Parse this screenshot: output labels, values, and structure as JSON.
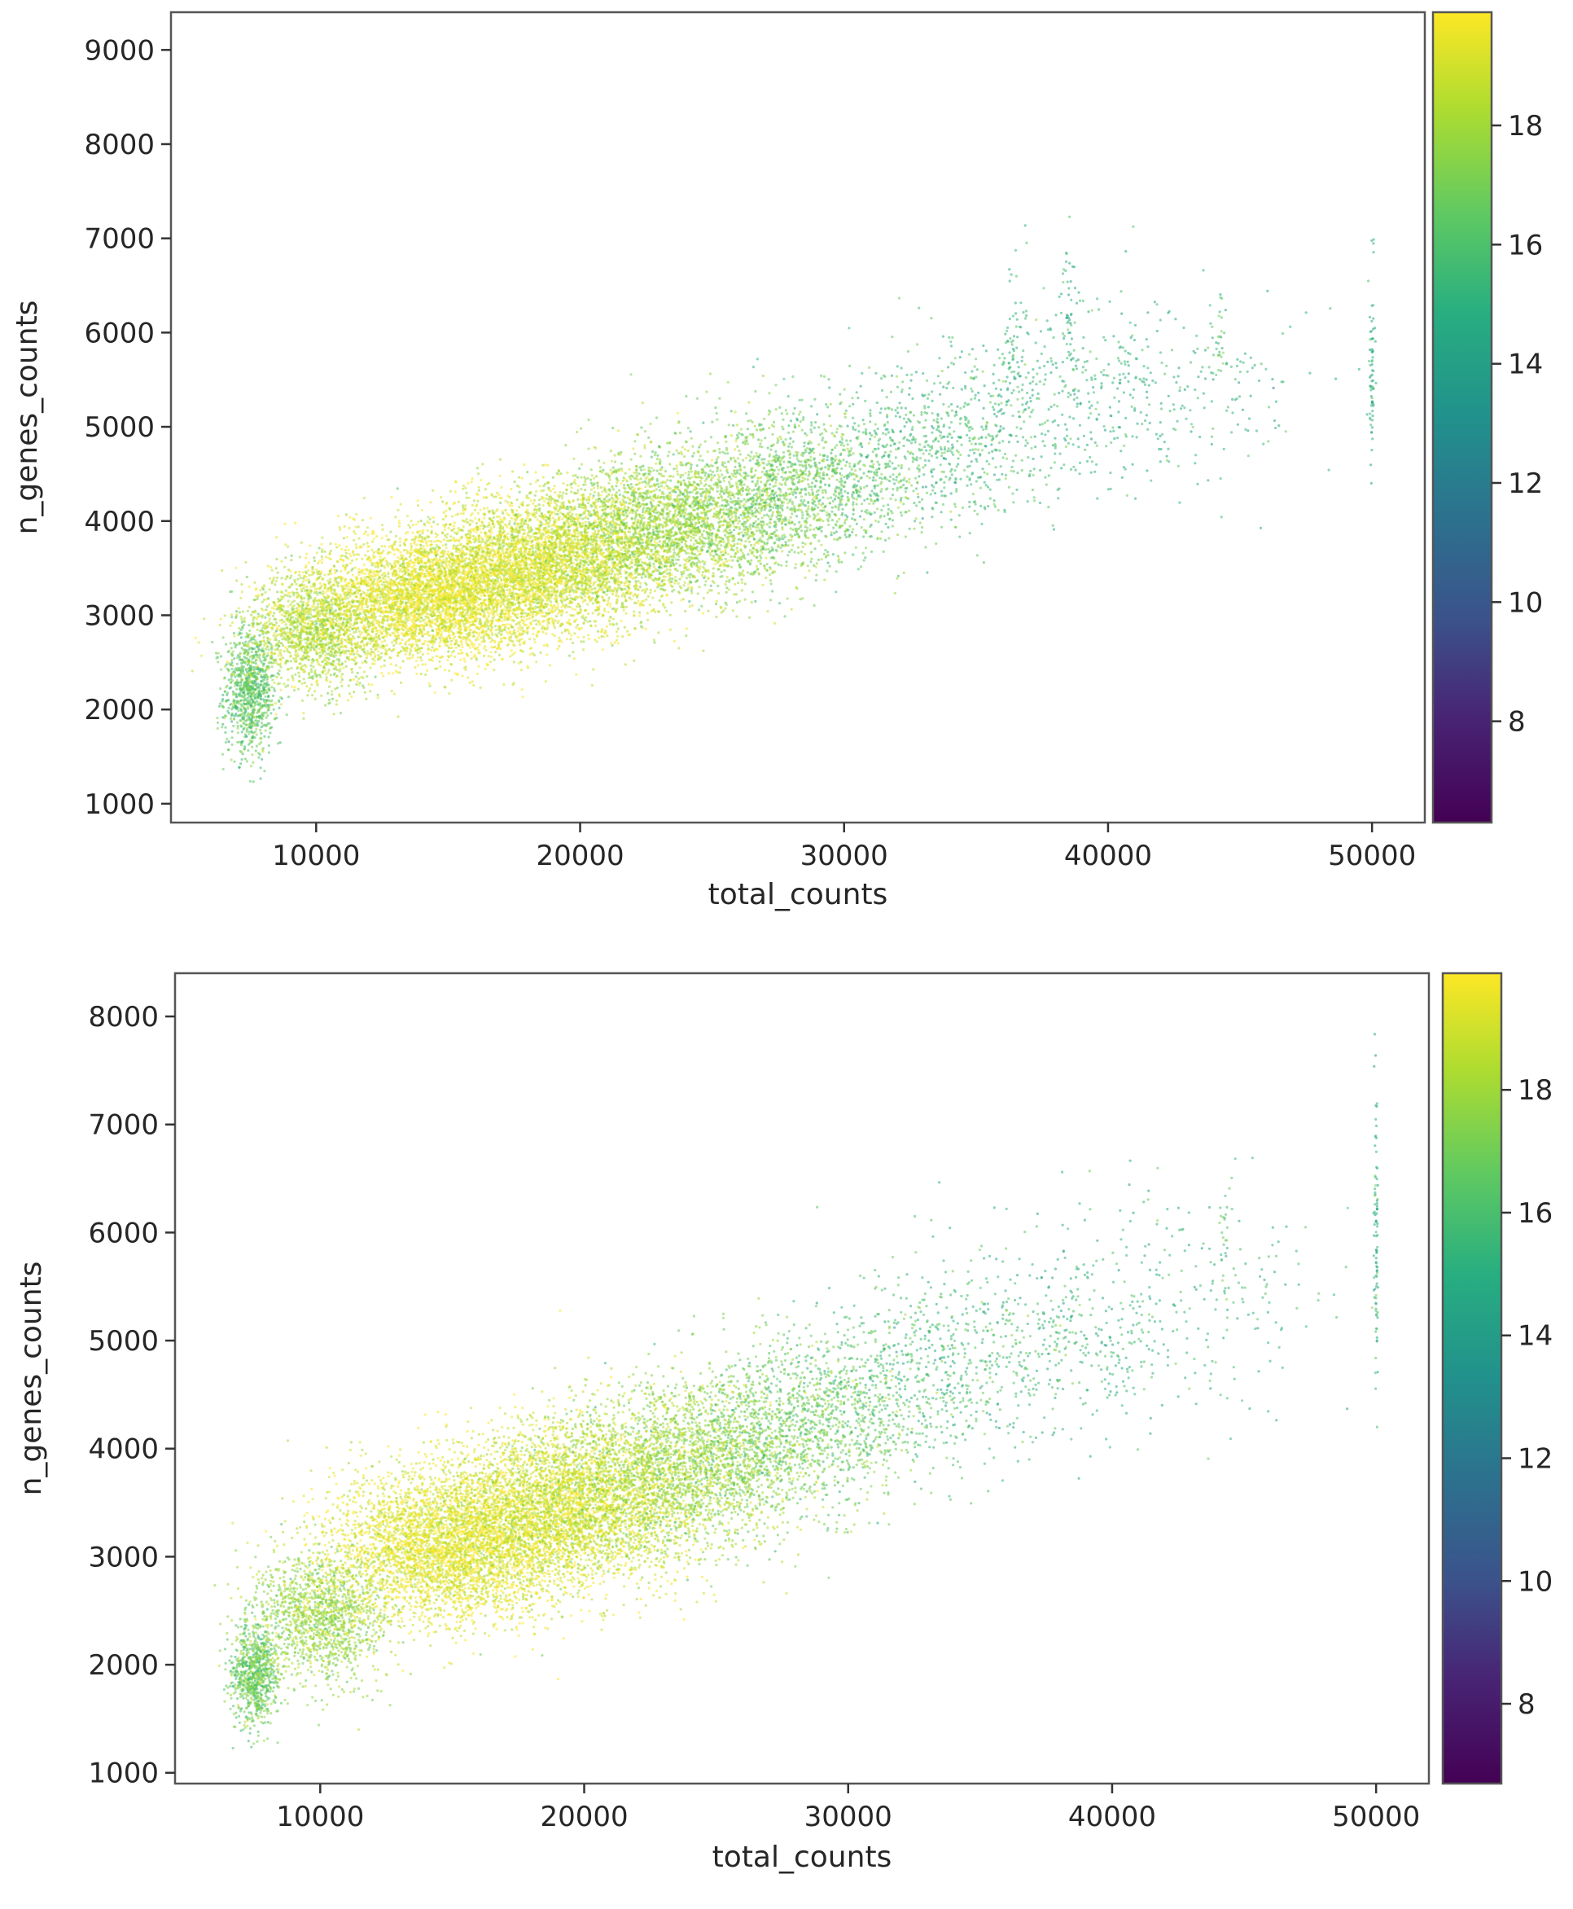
{
  "chart_data": [
    {
      "type": "scatter",
      "xlabel": "total_counts",
      "ylabel": "n_genes_counts",
      "xlim": [
        4500,
        52000
      ],
      "ylim": [
        800,
        9400
      ],
      "x_ticks": [
        10000,
        20000,
        30000,
        40000,
        50000
      ],
      "y_ticks": [
        1000,
        2000,
        3000,
        4000,
        5000,
        6000,
        7000,
        8000,
        9000
      ],
      "colorbar": {
        "colormap": "viridis",
        "range": [
          6.3,
          19.9
        ],
        "ticks": [
          8,
          10,
          12,
          14,
          16,
          18
        ]
      },
      "density_clusters": [
        {
          "x": 7500,
          "y": 2200,
          "sx": 500,
          "sy": 350,
          "n": 900,
          "color": 16.5
        },
        {
          "x": 10000,
          "y": 2850,
          "sx": 1300,
          "sy": 300,
          "n": 1600,
          "color": 18.3
        },
        {
          "x": 14500,
          "y": 3200,
          "sx": 2200,
          "sy": 330,
          "n": 4200,
          "color": 19.4
        },
        {
          "x": 19000,
          "y": 3600,
          "sx": 2300,
          "sy": 360,
          "n": 3800,
          "color": 19.0
        },
        {
          "x": 23500,
          "y": 3950,
          "sx": 2300,
          "sy": 380,
          "n": 2600,
          "color": 17.8
        },
        {
          "x": 28000,
          "y": 4350,
          "sx": 2200,
          "sy": 400,
          "n": 1400,
          "color": 16.8
        },
        {
          "x": 33000,
          "y": 4800,
          "sx": 2400,
          "sy": 450,
          "n": 700,
          "color": 15.8
        },
        {
          "x": 38000,
          "y": 5300,
          "sx": 2600,
          "sy": 520,
          "n": 380,
          "color": 15.2
        },
        {
          "x": 43000,
          "y": 5500,
          "sx": 2500,
          "sy": 550,
          "n": 160,
          "color": 15.0
        },
        {
          "x": 36500,
          "y": 5900,
          "sx": 300,
          "sy": 450,
          "n": 60,
          "color": 15.5
        },
        {
          "x": 38500,
          "y": 6000,
          "sx": 200,
          "sy": 400,
          "n": 50,
          "color": 15.0
        },
        {
          "x": 44200,
          "y": 5900,
          "sx": 150,
          "sy": 250,
          "n": 30,
          "color": 16.0
        },
        {
          "x": 50000,
          "y": 5600,
          "sx": 50,
          "sy": 500,
          "n": 70,
          "color": 15.0
        }
      ]
    },
    {
      "type": "scatter",
      "xlabel": "total_counts",
      "ylabel": "n_genes_counts",
      "xlim": [
        4500,
        52000
      ],
      "ylim": [
        900,
        8400
      ],
      "x_ticks": [
        10000,
        20000,
        30000,
        40000,
        50000
      ],
      "y_ticks": [
        1000,
        2000,
        3000,
        4000,
        5000,
        6000,
        7000,
        8000
      ],
      "colorbar": {
        "colormap": "viridis",
        "range": [
          6.7,
          19.9
        ],
        "ticks": [
          8,
          10,
          12,
          14,
          16,
          18
        ]
      },
      "density_clusters": [
        {
          "x": 7500,
          "y": 1900,
          "sx": 450,
          "sy": 230,
          "n": 800,
          "color": 16.8
        },
        {
          "x": 10000,
          "y": 2450,
          "sx": 1300,
          "sy": 300,
          "n": 1400,
          "color": 17.8
        },
        {
          "x": 15000,
          "y": 3100,
          "sx": 2300,
          "sy": 340,
          "n": 4300,
          "color": 19.4
        },
        {
          "x": 19500,
          "y": 3500,
          "sx": 2300,
          "sy": 370,
          "n": 3700,
          "color": 19.0
        },
        {
          "x": 24000,
          "y": 3850,
          "sx": 2300,
          "sy": 380,
          "n": 2400,
          "color": 17.8
        },
        {
          "x": 28500,
          "y": 4250,
          "sx": 2200,
          "sy": 400,
          "n": 1200,
          "color": 16.8
        },
        {
          "x": 33500,
          "y": 4750,
          "sx": 2400,
          "sy": 450,
          "n": 650,
          "color": 15.8
        },
        {
          "x": 38500,
          "y": 5100,
          "sx": 2600,
          "sy": 500,
          "n": 350,
          "color": 15.5
        },
        {
          "x": 43500,
          "y": 5400,
          "sx": 2500,
          "sy": 550,
          "n": 160,
          "color": 15.5
        },
        {
          "x": 44300,
          "y": 6000,
          "sx": 150,
          "sy": 300,
          "n": 25,
          "color": 16.0
        },
        {
          "x": 50000,
          "y": 5800,
          "sx": 40,
          "sy": 700,
          "n": 90,
          "color": 15.2
        }
      ]
    }
  ]
}
